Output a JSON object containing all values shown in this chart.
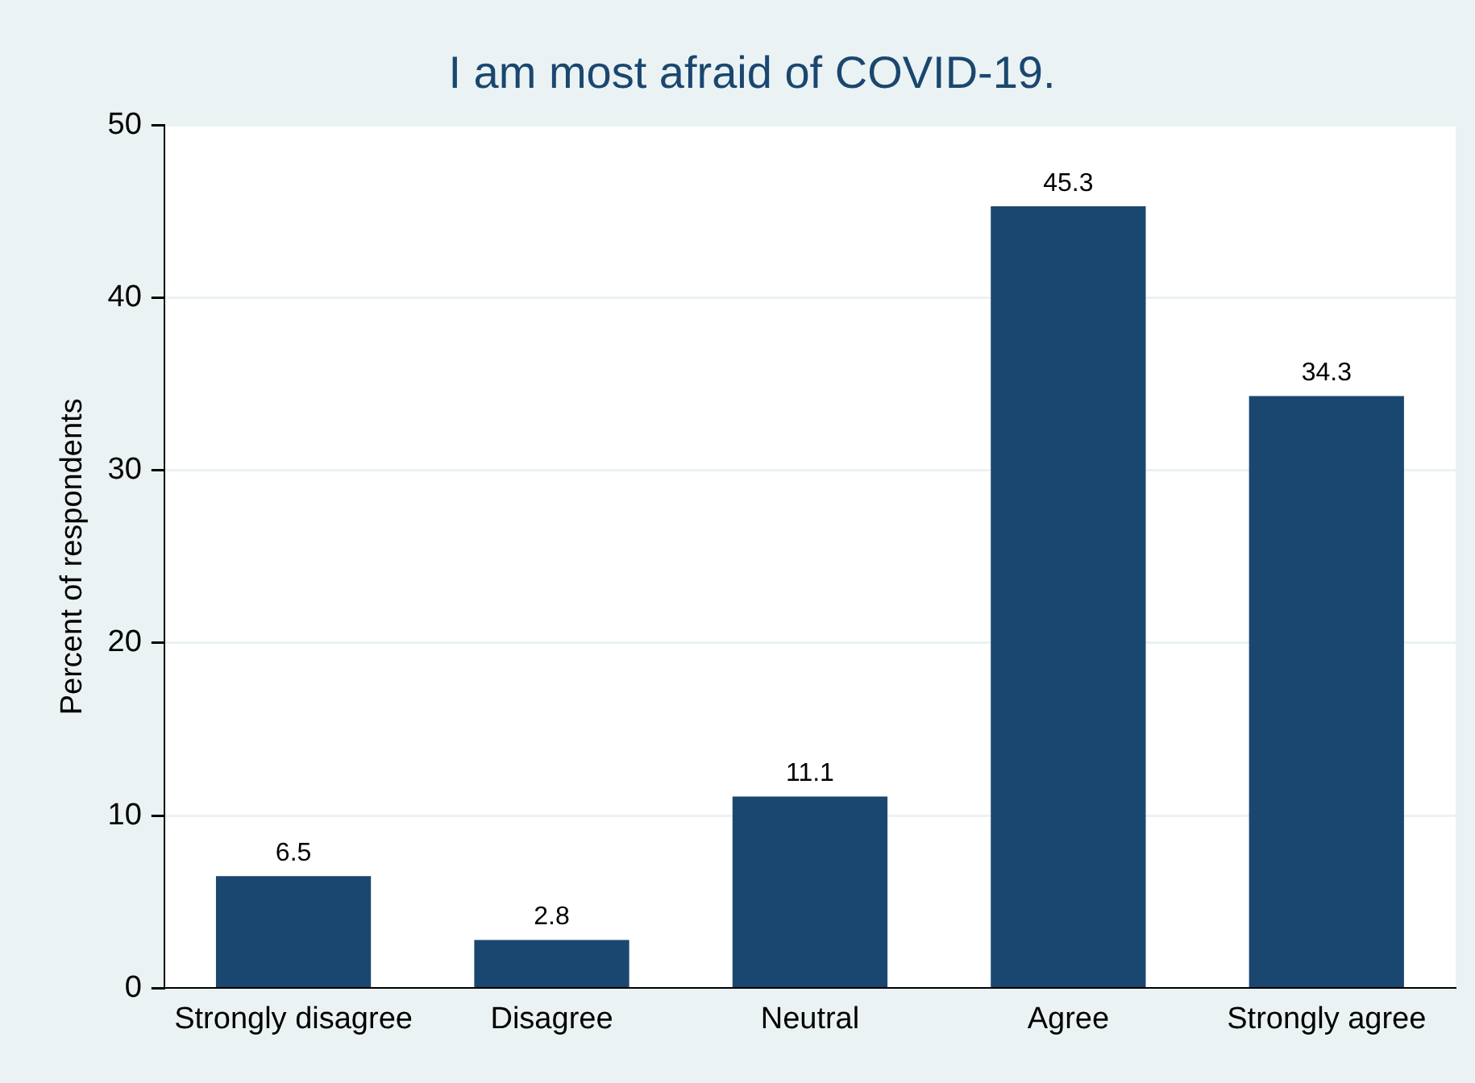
{
  "chart_data": {
    "type": "bar",
    "title": "I am most afraid of COVID-19.",
    "ylabel": "Percent of respondents",
    "categories": [
      "Strongly disagree",
      "Disagree",
      "Neutral",
      "Agree",
      "Strongly agree"
    ],
    "values": [
      6.5,
      2.8,
      11.1,
      45.3,
      34.3
    ],
    "color": "#1a476f",
    "ylim": [
      0,
      50
    ],
    "yticks": [
      0,
      10,
      20,
      30,
      40,
      50
    ],
    "grid": "y",
    "data_labels": true,
    "legend": false
  }
}
